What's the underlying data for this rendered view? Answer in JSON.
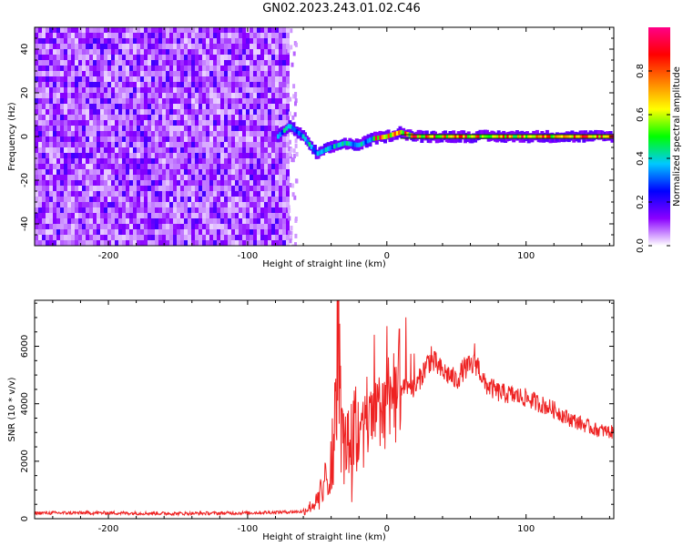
{
  "title": "GN02.2023.243.01.02.C46",
  "chart_data": [
    {
      "type": "heatmap",
      "xlabel": "Height of straight line (km)",
      "ylabel": "Frequency (Hz)",
      "xlim": [
        -253,
        163
      ],
      "ylim": [
        -50,
        50
      ],
      "xticks": [
        -200,
        -100,
        0,
        100
      ],
      "yticks": [
        -40,
        -20,
        0,
        20,
        40
      ],
      "colorbar": {
        "label": "Normalized spectral amplitude",
        "range": [
          0,
          1
        ],
        "ticks": [
          0.0,
          0.2,
          0.4,
          0.6,
          0.8
        ],
        "colors": [
          "#ffffff",
          "#8a00ff",
          "#0000ff",
          "#00c8ff",
          "#00ff00",
          "#ffff00",
          "#ff8000",
          "#ff0000",
          "#ff0088"
        ]
      },
      "noise_region": {
        "x_range": [
          -253,
          -72
        ],
        "y_range": [
          -50,
          50
        ],
        "amplitude": 0.15
      },
      "signal_track": {
        "x": [
          -78,
          -70,
          -60,
          -50,
          -40,
          -30,
          -20,
          -10,
          0,
          10,
          20,
          40,
          60,
          80,
          100,
          120,
          140,
          163
        ],
        "y": [
          0,
          5,
          0,
          -8,
          -5,
          -3,
          -4,
          -1,
          0,
          2,
          0,
          0,
          0,
          0,
          0,
          0,
          0,
          0
        ]
      },
      "grid": false
    },
    {
      "type": "line",
      "xlabel": "Height of straight line (km)",
      "ylabel": "SNR (10 * v/v)",
      "xlim": [
        -253,
        163
      ],
      "ylim": [
        0,
        7600
      ],
      "xticks": [
        -200,
        -100,
        0,
        100
      ],
      "yticks": [
        0,
        2000,
        4000,
        6000
      ],
      "color": "#ee2222",
      "series": [
        {
          "x": [
            -253,
            -200,
            -150,
            -100,
            -60,
            -50,
            -45,
            -40,
            -37,
            -35,
            -33,
            -30,
            -25,
            -20,
            -15,
            -10,
            -5,
            0,
            5,
            10,
            15,
            20,
            25,
            30,
            35,
            40,
            45,
            50,
            55,
            60,
            65,
            70,
            80,
            90,
            100,
            110,
            120,
            130,
            140,
            150,
            163
          ],
          "y": [
            200,
            200,
            180,
            200,
            250,
            600,
            1200,
            2000,
            3500,
            7600,
            3200,
            2300,
            2800,
            3200,
            3300,
            3400,
            3800,
            4300,
            4700,
            4400,
            4600,
            4500,
            5000,
            5500,
            5400,
            5100,
            5000,
            4800,
            5200,
            5300,
            5400,
            4700,
            4400,
            4300,
            4200,
            4000,
            3800,
            3500,
            3300,
            3100,
            3000
          ],
          "spikes": [
            {
              "x": -35,
              "y": 7600
            },
            {
              "x": -9,
              "y": 6400
            },
            {
              "x": 0,
              "y": 6700
            },
            {
              "x": 9,
              "y": 6600
            },
            {
              "x": 32,
              "y": 6000
            },
            {
              "x": 63,
              "y": 6100
            }
          ]
        }
      ],
      "grid": false
    }
  ]
}
